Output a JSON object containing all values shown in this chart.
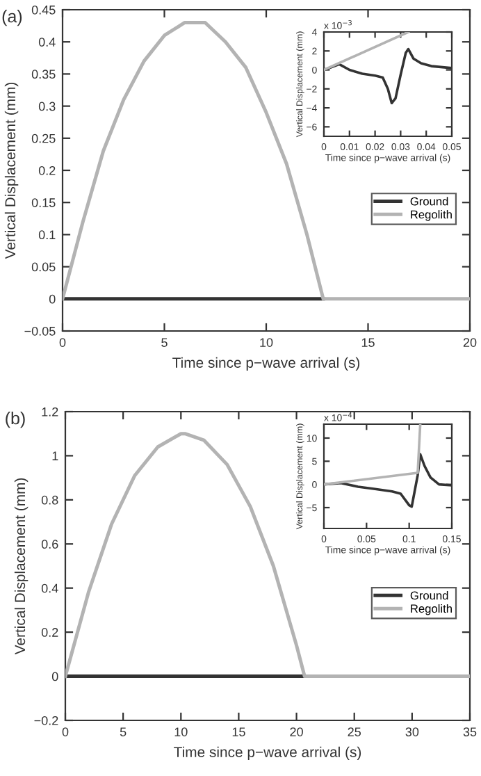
{
  "chart_data": [
    {
      "type": "line",
      "title": "(a)",
      "xlabel": "Time since p−wave arrival (s)",
      "ylabel": "Vertical Displacement (mm)",
      "xlim": [
        0,
        20
      ],
      "ylim": [
        -0.05,
        0.45
      ],
      "xticks": [
        0,
        5,
        10,
        15,
        20
      ],
      "yticks": [
        {
          "value": -0.05,
          "label": "−0.05"
        },
        0,
        0.05,
        0.1,
        0.15,
        0.2,
        0.25,
        0.3,
        0.35,
        0.4,
        0.45
      ],
      "legend": "right",
      "series": [
        {
          "name": "Ground",
          "color": "#333333",
          "x": [
            0,
            12.8
          ],
          "values": [
            0,
            0
          ]
        },
        {
          "name": "Regolith",
          "color": "#b3b3b3",
          "x": [
            0,
            1,
            2,
            3,
            4,
            5,
            6,
            6.4,
            7,
            8,
            9,
            10,
            11,
            12,
            12.8,
            20
          ],
          "values": [
            0,
            0.12,
            0.23,
            0.31,
            0.37,
            0.41,
            0.43,
            0.43,
            0.43,
            0.4,
            0.36,
            0.29,
            0.21,
            0.1,
            0,
            0
          ]
        }
      ]
    },
    {
      "type": "line",
      "xlabel": "Time since p−wave arrival (s)",
      "ylabel": "Vertical Displacement (mm)",
      "xlim": [
        0,
        0.05
      ],
      "ylim": [
        -7,
        4
      ],
      "xticks": [
        0,
        0.01,
        0.02,
        0.03,
        0.04,
        0.05
      ],
      "yticks": [
        {
          "value": -6,
          "label": "−6"
        },
        {
          "value": -4,
          "label": "−4"
        },
        {
          "value": -2,
          "label": "−2"
        },
        0,
        2,
        4
      ],
      "annotations": [
        "x 10$^{−3}$"
      ],
      "series": [
        {
          "color": "#333333",
          "x": [
            0,
            0.003,
            0.006,
            0.01,
            0.015,
            0.02,
            0.023,
            0.025,
            0.0265,
            0.028,
            0.03,
            0.032,
            0.033,
            0.035,
            0.038,
            0.042,
            0.05
          ],
          "values": [
            0,
            0.3,
            0.6,
            0,
            -0.4,
            -0.6,
            -0.8,
            -2,
            -3.5,
            -3,
            -0.5,
            1.8,
            2.2,
            1.2,
            0.7,
            0.4,
            0.2
          ]
        },
        {
          "color": "#b3b3b3",
          "x": [
            0,
            0.033
          ],
          "values": [
            0,
            4
          ]
        }
      ]
    },
    {
      "type": "line",
      "title": "(b)",
      "xlabel": "Time since p−wave arrival (s)",
      "ylabel": "Vertical Displacement (mm)",
      "xlim": [
        0,
        35
      ],
      "ylim": [
        -0.2,
        1.2
      ],
      "xticks": [
        0,
        5,
        10,
        15,
        20,
        25,
        30,
        35
      ],
      "yticks": [
        {
          "value": -0.2,
          "label": "−0.2"
        },
        0,
        0.2,
        0.4,
        0.6,
        0.8,
        1,
        1.2
      ],
      "legend": "right",
      "series": [
        {
          "name": "Ground",
          "color": "#333333",
          "x": [
            0,
            20.7
          ],
          "values": [
            0,
            0
          ]
        },
        {
          "name": "Regolith",
          "color": "#b3b3b3",
          "x": [
            0,
            2,
            4,
            6,
            8,
            10,
            10.35,
            12,
            14,
            16,
            18,
            20,
            20.7,
            35
          ],
          "values": [
            0,
            0.38,
            0.69,
            0.91,
            1.04,
            1.1,
            1.1,
            1.07,
            0.96,
            0.77,
            0.5,
            0.14,
            0,
            0
          ]
        }
      ]
    },
    {
      "type": "line",
      "xlabel": "Time since p−wave arrival (s)",
      "ylabel": "Vertical Displacement (mm)",
      "xlim": [
        0,
        0.15
      ],
      "ylim": [
        -9.5,
        13
      ],
      "xticks": [
        0,
        0.05,
        0.1,
        0.15
      ],
      "yticks": [
        {
          "value": -5,
          "label": "−5"
        },
        0,
        5,
        10
      ],
      "annotations": [
        "x 10$^{−4}$"
      ],
      "series": [
        {
          "color": "#333333",
          "x": [
            0,
            0.02,
            0.04,
            0.06,
            0.08,
            0.09,
            0.1,
            0.103,
            0.11,
            0.113,
            0.118,
            0.125,
            0.135,
            0.15
          ],
          "values": [
            0,
            0.3,
            -0.5,
            -1,
            -1.5,
            -2,
            -4.5,
            -4.8,
            2,
            6.5,
            4,
            1.5,
            0,
            -0.2
          ]
        },
        {
          "color": "#b3b3b3",
          "x": [
            0,
            0.11,
            0.113
          ],
          "values": [
            0,
            2.5,
            13
          ]
        }
      ]
    }
  ]
}
